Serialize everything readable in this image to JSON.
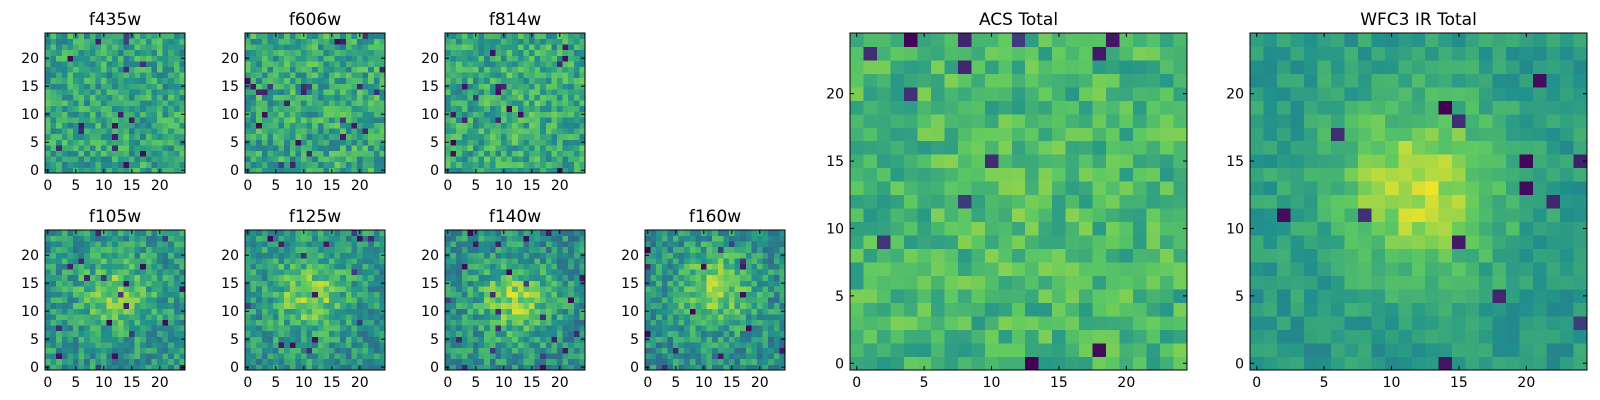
{
  "chart_data": [
    {
      "type": "heatmap",
      "title": "f435w",
      "grid_size": 25,
      "x_ticks": [
        "0",
        "5",
        "10",
        "15",
        "20"
      ],
      "y_ticks": [
        "0",
        "5",
        "10",
        "15",
        "20"
      ],
      "colormap": [
        "#440154",
        "#3b528b",
        "#21918c",
        "#5ec962",
        "#fde725"
      ],
      "profile": {
        "peak_x": 12,
        "peak_y": 12,
        "amplitude": 0.0,
        "noise": 0.18,
        "base": 0.58,
        "seed": 11
      }
    },
    {
      "type": "heatmap",
      "title": "f606w",
      "grid_size": 25,
      "x_ticks": [
        "0",
        "5",
        "10",
        "15",
        "20"
      ],
      "y_ticks": [
        "0",
        "5",
        "10",
        "15",
        "20"
      ],
      "colormap": [
        "#440154",
        "#3b528b",
        "#21918c",
        "#5ec962",
        "#fde725"
      ],
      "profile": {
        "peak_x": 12,
        "peak_y": 12,
        "amplitude": 0.0,
        "noise": 0.19,
        "base": 0.6,
        "seed": 23
      }
    },
    {
      "type": "heatmap",
      "title": "f814w",
      "grid_size": 25,
      "x_ticks": [
        "0",
        "5",
        "10",
        "15",
        "20"
      ],
      "y_ticks": [
        "0",
        "5",
        "10",
        "15",
        "20"
      ],
      "colormap": [
        "#440154",
        "#3b528b",
        "#21918c",
        "#5ec962",
        "#fde725"
      ],
      "profile": {
        "peak_x": 12,
        "peak_y": 12,
        "amplitude": 0.03,
        "noise": 0.18,
        "base": 0.6,
        "seed": 37
      }
    },
    {
      "type": "heatmap",
      "title": "f105w",
      "grid_size": 25,
      "x_ticks": [
        "0",
        "5",
        "10",
        "15",
        "20"
      ],
      "y_ticks": [
        "0",
        "5",
        "10",
        "15",
        "20"
      ],
      "colormap": [
        "#440154",
        "#3b528b",
        "#21918c",
        "#5ec962",
        "#fde725"
      ],
      "profile": {
        "peak_x": 12,
        "peak_y": 13,
        "amplitude": 0.25,
        "noise": 0.17,
        "base": 0.52,
        "seed": 41
      }
    },
    {
      "type": "heatmap",
      "title": "f125w",
      "grid_size": 25,
      "x_ticks": [
        "0",
        "5",
        "10",
        "15",
        "20"
      ],
      "y_ticks": [
        "0",
        "5",
        "10",
        "15",
        "20"
      ],
      "colormap": [
        "#440154",
        "#3b528b",
        "#21918c",
        "#5ec962",
        "#fde725"
      ],
      "profile": {
        "peak_x": 11,
        "peak_y": 13,
        "amplitude": 0.28,
        "noise": 0.17,
        "base": 0.52,
        "seed": 53
      }
    },
    {
      "type": "heatmap",
      "title": "f140w",
      "grid_size": 25,
      "x_ticks": [
        "0",
        "5",
        "10",
        "15",
        "20"
      ],
      "y_ticks": [
        "0",
        "5",
        "10",
        "15",
        "20"
      ],
      "colormap": [
        "#440154",
        "#3b528b",
        "#21918c",
        "#5ec962",
        "#fde725"
      ],
      "profile": {
        "peak_x": 12,
        "peak_y": 12,
        "amplitude": 0.32,
        "noise": 0.17,
        "base": 0.5,
        "seed": 67
      }
    },
    {
      "type": "heatmap",
      "title": "f160w",
      "grid_size": 25,
      "x_ticks": [
        "0",
        "5",
        "10",
        "15",
        "20"
      ],
      "y_ticks": [
        "0",
        "5",
        "10",
        "15",
        "20"
      ],
      "colormap": [
        "#440154",
        "#3b528b",
        "#21918c",
        "#5ec962",
        "#fde725"
      ],
      "profile": {
        "peak_x": 12,
        "peak_y": 14,
        "amplitude": 0.32,
        "noise": 0.17,
        "base": 0.5,
        "seed": 79
      }
    },
    {
      "type": "heatmap",
      "title": "ACS Total",
      "grid_size": 25,
      "x_ticks": [
        "0",
        "5",
        "10",
        "15",
        "20"
      ],
      "y_ticks": [
        "0",
        "5",
        "10",
        "15",
        "20"
      ],
      "colormap": [
        "#440154",
        "#3b528b",
        "#21918c",
        "#5ec962",
        "#fde725"
      ],
      "profile": {
        "peak_x": 12,
        "peak_y": 12,
        "amplitude": 0.04,
        "noise": 0.14,
        "base": 0.66,
        "seed": 97
      }
    },
    {
      "type": "heatmap",
      "title": "WFC3 IR Total",
      "grid_size": 25,
      "x_ticks": [
        "0",
        "5",
        "10",
        "15",
        "20"
      ],
      "y_ticks": [
        "0",
        "5",
        "10",
        "15",
        "20"
      ],
      "colormap": [
        "#440154",
        "#3b528b",
        "#21918c",
        "#5ec962",
        "#fde725"
      ],
      "profile": {
        "peak_x": 12,
        "peak_y": 13,
        "amplitude": 0.36,
        "noise": 0.09,
        "base": 0.54,
        "seed": 131
      }
    }
  ]
}
